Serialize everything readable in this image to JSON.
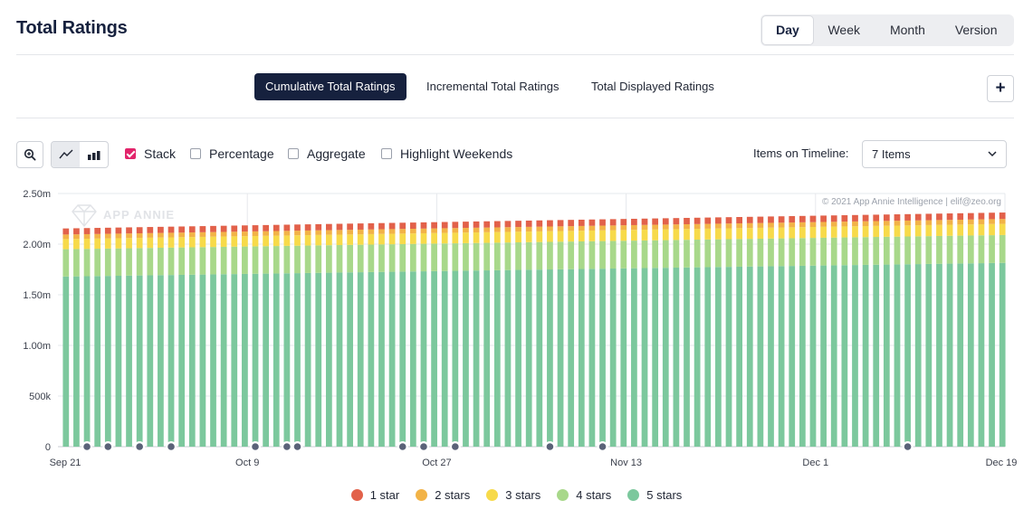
{
  "header": {
    "title": "Total Ratings",
    "periods": [
      "Day",
      "Week",
      "Month",
      "Version"
    ],
    "active_period": "Day"
  },
  "tabs": {
    "items": [
      "Cumulative Total Ratings",
      "Incremental Total Ratings",
      "Total Displayed Ratings"
    ],
    "active": "Cumulative Total Ratings"
  },
  "toolbar": {
    "add_icon": "plus-icon",
    "zoom_icon": "zoom-in-icon",
    "line_chart_icon": "line-chart-icon",
    "bar_chart_icon": "bar-chart-icon",
    "stack_label": "Stack",
    "stack_checked": true,
    "percentage_label": "Percentage",
    "aggregate_label": "Aggregate",
    "highlight_weekends_label": "Highlight Weekends",
    "items_on_timeline_label": "Items on Timeline:",
    "items_select_value": "7 Items",
    "checkbox_accent": "#e2246b"
  },
  "watermark": {
    "brand": "APP ANNIE",
    "copyright": "© 2021 App Annie Intelligence | elif@zeo.org"
  },
  "chart_data": {
    "type": "bar",
    "stacked": true,
    "x_start": "Sep 21",
    "x_end": "Dec 19",
    "x_tick_labels": [
      "Sep 21",
      "Oct 9",
      "Oct 27",
      "Nov 13",
      "Dec 1",
      "Dec 19"
    ],
    "y_tick_labels": [
      "0",
      "500k",
      "1.00m",
      "1.50m",
      "2.00m",
      "2.50m"
    ],
    "ylim": [
      0,
      2500000
    ],
    "num_bars": 90,
    "grid": true,
    "legend_position": "bottom",
    "series": [
      {
        "name": "5 stars",
        "color": "#7cc89d",
        "start": 1680000,
        "end": 1815000
      },
      {
        "name": "4 stars",
        "color": "#a8d88a",
        "start": 270000,
        "end": 275000
      },
      {
        "name": "3 stars",
        "color": "#f7da4a",
        "start": 100000,
        "end": 110000
      },
      {
        "name": "2 stars",
        "color": "#f2b347",
        "start": 45000,
        "end": 48000
      },
      {
        "name": "1 star",
        "color": "#e2614a",
        "start": 60000,
        "end": 64000
      }
    ],
    "legend_order": [
      "1 star",
      "2 stars",
      "3 stars",
      "4 stars",
      "5 stars"
    ],
    "event_marker_days": [
      2,
      4,
      7,
      10,
      18,
      21,
      22,
      32,
      34,
      37,
      46,
      51,
      80
    ],
    "event_marker_color": "#5a6278"
  }
}
